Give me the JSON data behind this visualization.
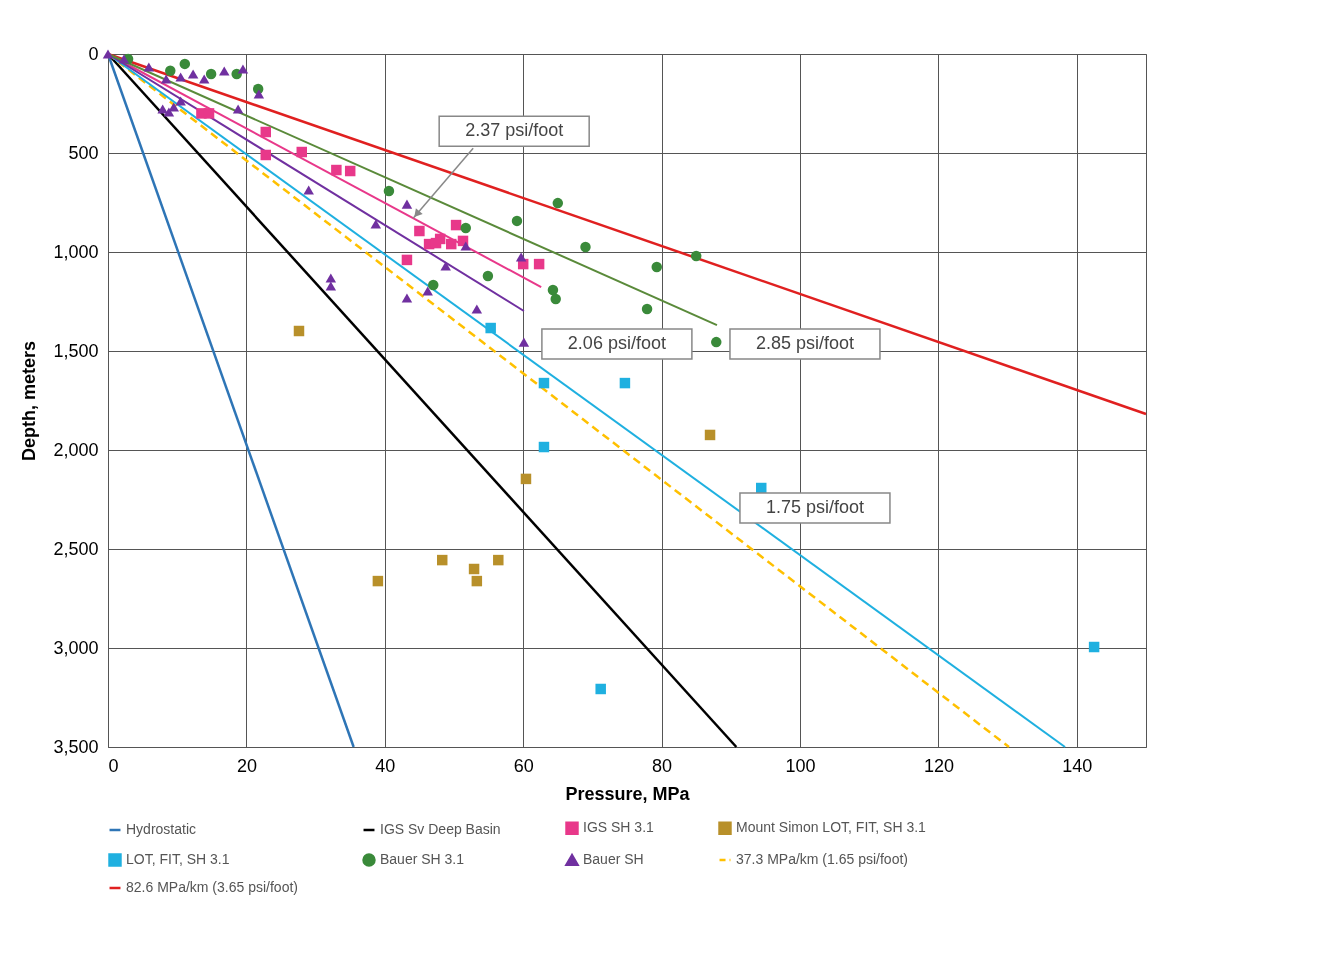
{
  "chart_data": {
    "type": "scatter",
    "xlabel": "Pressure, MPa",
    "ylabel": "Depth, meters",
    "xlim": [
      0,
      150
    ],
    "xticks": [
      0,
      20,
      40,
      60,
      80,
      100,
      120,
      140
    ],
    "ylim": [
      3500,
      0
    ],
    "yticks": [
      0,
      500,
      {
        "value": 1000,
        "label": "1,000"
      },
      {
        "value": 1500,
        "label": "1,500"
      },
      {
        "value": 2000,
        "label": "2,000"
      },
      {
        "value": 2500,
        "label": "2,500"
      },
      {
        "value": 3000,
        "label": "3,000"
      },
      {
        "value": 3500,
        "label": "3,500"
      }
    ],
    "grid": true,
    "legend": "bottom",
    "series": [
      {
        "name": "Hydrostatic",
        "type": "line",
        "color": "#2e75b6",
        "x": [
          0,
          35.5
        ],
        "values": [
          0,
          3500
        ]
      },
      {
        "name": "IGS Sv Deep Basin",
        "type": "line",
        "color": "#000000",
        "x": [
          0,
          90.8
        ],
        "values": [
          0,
          3500
        ]
      },
      {
        "name": "IGS SH 3.1",
        "color": "#e8388a",
        "marker": "square",
        "x": [
          13.5,
          14.6,
          22.8,
          22.8,
          28,
          33,
          35,
          45,
          43.2,
          46.4,
          48,
          50.3,
          51.3,
          49.6,
          60,
          62.3,
          47.4
        ],
        "values": [
          300,
          300,
          394,
          510,
          495,
          586,
          591,
          894,
          1040,
          960,
          934,
          864,
          944,
          960,
          1061,
          1061,
          955
        ]
      },
      {
        "name": "Mount Simon LOT, FIT, SH 3.1",
        "color": "#b8902a",
        "marker": "square",
        "x": [
          27.6,
          60.4,
          87,
          39,
          48.3,
          52.9,
          53.3,
          56.4
        ],
        "values": [
          1399,
          2146,
          1924,
          2662,
          2556,
          2601,
          2662,
          2556
        ]
      },
      {
        "name": "LOT, FIT, SH 3.1",
        "color": "#1fb0e0",
        "marker": "square",
        "x": [
          55.3,
          63,
          74.7,
          63,
          94.4,
          71.2,
          142.5
        ],
        "values": [
          1384,
          1662,
          1662,
          1985,
          2192,
          3207,
          2995
        ]
      },
      {
        "name": "Bauer SH 3.1",
        "color": "#3a8a3a",
        "marker": "circle",
        "x": [
          2.9,
          11.1,
          14.9,
          18.6,
          21.7,
          9,
          40.6,
          65,
          59.1,
          51.7,
          69,
          79.3,
          85,
          47,
          54.9,
          64.3,
          64.7,
          77.9,
          87.9
        ],
        "values": [
          25,
          50,
          101,
          101,
          177,
          85,
          692,
          753,
          843,
          879,
          975,
          1076,
          1020,
          1167,
          1121,
          1192,
          1237,
          1288,
          1455
        ]
      },
      {
        "name": "Bauer SH",
        "color": "#7030a0",
        "marker": "triangle",
        "x": [
          0,
          2.3,
          5.9,
          8.4,
          10.5,
          12.3,
          13.9,
          16.8,
          19.5,
          21.8,
          18.8,
          7.9,
          9.5,
          8.8,
          10.5,
          29,
          38.7,
          43.2,
          48.8,
          51.7,
          59.7,
          43.2,
          46.2,
          53.3,
          32.2,
          32.2,
          60.1
        ],
        "values": [
          0,
          25,
          66,
          126,
          116,
          101,
          126,
          86,
          76,
          202,
          278,
          278,
          268,
          293,
          237,
          687,
          859,
          758,
          1071,
          970,
          1025,
          1232,
          1197,
          1288,
          1131,
          1172,
          1455
        ]
      },
      {
        "name": "37.3 MPa/km (1.65 psi/foot)",
        "type": "line",
        "line_style": "dashed",
        "color": "#ffc000",
        "x": [
          0,
          130.2
        ],
        "values": [
          0,
          3500
        ]
      },
      {
        "name": "82.6 MPa/km (3.65 psi/foot)",
        "type": "line",
        "color": "#e02020",
        "x": [
          0,
          150
        ],
        "values": [
          0,
          1818
        ]
      },
      {
        "type": "line",
        "color": "#1fb0e0",
        "x": [
          0,
          138.3
        ],
        "values": [
          0,
          3500
        ]
      },
      {
        "type": "line",
        "color": "#e8388a",
        "x": [
          0,
          62.6
        ],
        "values": [
          0,
          1177
        ]
      },
      {
        "type": "line",
        "color": "#7030a0",
        "x": [
          0,
          60.1
        ],
        "values": [
          0,
          1298
        ]
      },
      {
        "type": "line",
        "color": "#5a8a3a",
        "x": [
          0,
          88
        ],
        "values": [
          0,
          1369
        ]
      }
    ],
    "annotations": [
      {
        "text": "2.37 psi/foot",
        "x": 44.1,
        "y": 830
      },
      {
        "text": "2.06 psi/foot",
        "x": 60.1,
        "y": 1298
      },
      {
        "text": "2.85 psi/foot",
        "x": 88,
        "y": 1369
      },
      {
        "text": "1.75 psi/foot",
        "x": 90.6,
        "y": 2293
      }
    ]
  }
}
